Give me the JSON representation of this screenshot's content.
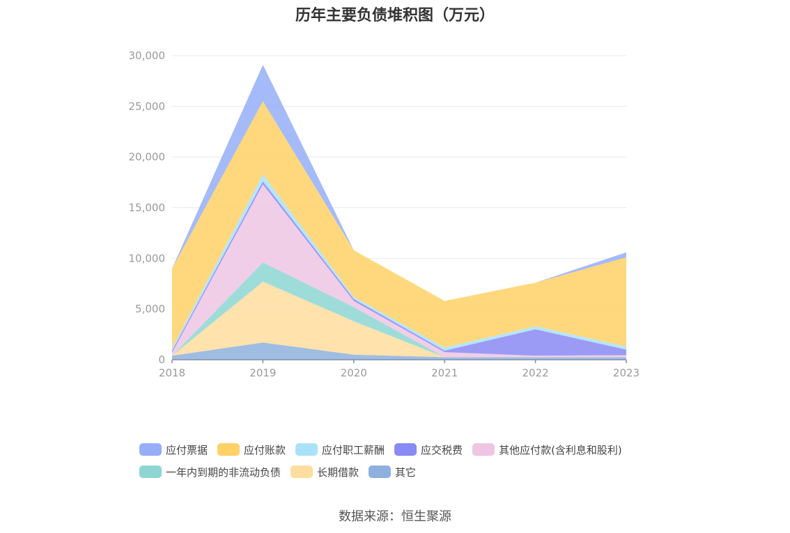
{
  "chart_data": {
    "type": "area",
    "stacked": true,
    "title": "历年主要负债堆积图（万元）",
    "categories": [
      "2018",
      "2019",
      "2020",
      "2021",
      "2022",
      "2023"
    ],
    "y_ticks": [
      "0",
      "5,000",
      "10,000",
      "15,000",
      "20,000",
      "25,000",
      "30,000"
    ],
    "ylim": [
      0,
      30000
    ],
    "grid": true,
    "legend_position": "bottom",
    "series": [
      {
        "name": "其它",
        "color": "#8eb0de",
        "values": [
          400,
          1700,
          500,
          250,
          250,
          250
        ]
      },
      {
        "name": "长期借款",
        "color": "#ffdd9e",
        "values": [
          0,
          6000,
          3300,
          0,
          0,
          0
        ]
      },
      {
        "name": "一年内到期的非流动负债",
        "color": "#8dd6d4",
        "values": [
          0,
          1900,
          1400,
          0,
          0,
          0
        ]
      },
      {
        "name": "其他应付款(含利息和股利)",
        "color": "#eec5e3",
        "values": [
          300,
          7700,
          600,
          500,
          150,
          200
        ]
      },
      {
        "name": "应交税费",
        "color": "#8a8af5",
        "values": [
          200,
          300,
          200,
          150,
          2600,
          550
        ]
      },
      {
        "name": "应付职工薪酬",
        "color": "#a9e2f7",
        "values": [
          250,
          700,
          200,
          300,
          300,
          300
        ]
      },
      {
        "name": "应付账款",
        "color": "#ffd166",
        "values": [
          7850,
          7200,
          4600,
          4600,
          4300,
          8800
        ]
      },
      {
        "name": "应付票据",
        "color": "#95aef7",
        "values": [
          0,
          3600,
          0,
          0,
          0,
          500
        ]
      }
    ],
    "legend_order": [
      "应付票据",
      "应付账款",
      "应付职工薪酬",
      "应交税费",
      "其他应付款(含利息和股利)",
      "一年内到期的非流动负债",
      "长期借款",
      "其它"
    ],
    "source": "数据来源：恒生聚源"
  }
}
